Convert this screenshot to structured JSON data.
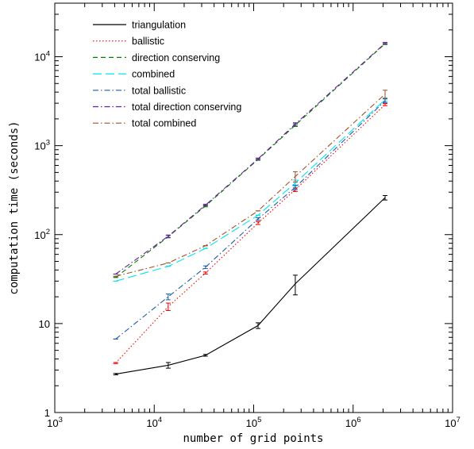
{
  "chart_data": {
    "type": "line",
    "xlabel": "number of grid points",
    "ylabel": "computation time (seconds)",
    "x_scale": "log",
    "y_scale": "log",
    "xlim": [
      1000,
      10000000
    ],
    "ylim": [
      1,
      40000
    ],
    "x_ticks": [
      {
        "value": 1000,
        "base": "10",
        "exp": "3"
      },
      {
        "value": 10000,
        "base": "10",
        "exp": "4"
      },
      {
        "value": 100000,
        "base": "10",
        "exp": "5"
      },
      {
        "value": 1000000,
        "base": "10",
        "exp": "6"
      },
      {
        "value": 10000000,
        "base": "10",
        "exp": "7"
      }
    ],
    "y_ticks": [
      {
        "value": 1,
        "label": "1"
      },
      {
        "value": 10,
        "label": "10"
      },
      {
        "value": 100,
        "base": "10",
        "exp": "2"
      },
      {
        "value": 1000,
        "base": "10",
        "exp": "3"
      },
      {
        "value": 10000,
        "base": "10",
        "exp": "4"
      }
    ],
    "grid": false,
    "legend_position": "top-left",
    "x": [
      4096,
      13824,
      32768,
      110592,
      262144,
      2097152
    ],
    "series": [
      {
        "name": "triangulation",
        "color": "#000000",
        "dash": "solid",
        "values": [
          2.7,
          3.4,
          4.4,
          9.5,
          28,
          260
        ],
        "errors": [
          0.05,
          0.25,
          0.1,
          0.7,
          7,
          15
        ]
      },
      {
        "name": "ballistic",
        "color": "#ff0000",
        "dash": "dotted",
        "values": [
          3.6,
          15.5,
          37,
          135,
          320,
          2900
        ],
        "errors": [
          0.05,
          1.5,
          1,
          5,
          15,
          80
        ]
      },
      {
        "name": "direction conserving",
        "color": "#008000",
        "dash": "dashed",
        "values": [
          33,
          95,
          210,
          700,
          1700,
          14000
        ],
        "errors": [
          0,
          3,
          5,
          15,
          60,
          300
        ]
      },
      {
        "name": "combined",
        "color": "#00e5ee",
        "dash": "longdash",
        "values": [
          30,
          44,
          70,
          165,
          380,
          3300
        ],
        "errors": [
          0,
          0,
          0,
          0,
          30,
          150
        ]
      },
      {
        "name": "total ballistic",
        "color": "#1a5eb0",
        "dash": "dashdot",
        "values": [
          6.7,
          20,
          43,
          150,
          340,
          3200
        ],
        "errors": [
          0,
          1.5,
          1.5,
          5,
          20,
          150
        ]
      },
      {
        "name": "total direction conserving",
        "color": "#6a1b9a",
        "dash": "dashdot",
        "values": [
          36,
          96,
          215,
          710,
          1750,
          14200
        ],
        "errors": [
          0,
          3,
          5,
          15,
          60,
          300
        ]
      },
      {
        "name": "total combined",
        "color": "#a0522d",
        "dash": "dashdot",
        "values": [
          34,
          48,
          75,
          185,
          450,
          3800
        ],
        "errors": [
          0,
          0,
          0,
          0,
          60,
          400
        ]
      }
    ]
  }
}
